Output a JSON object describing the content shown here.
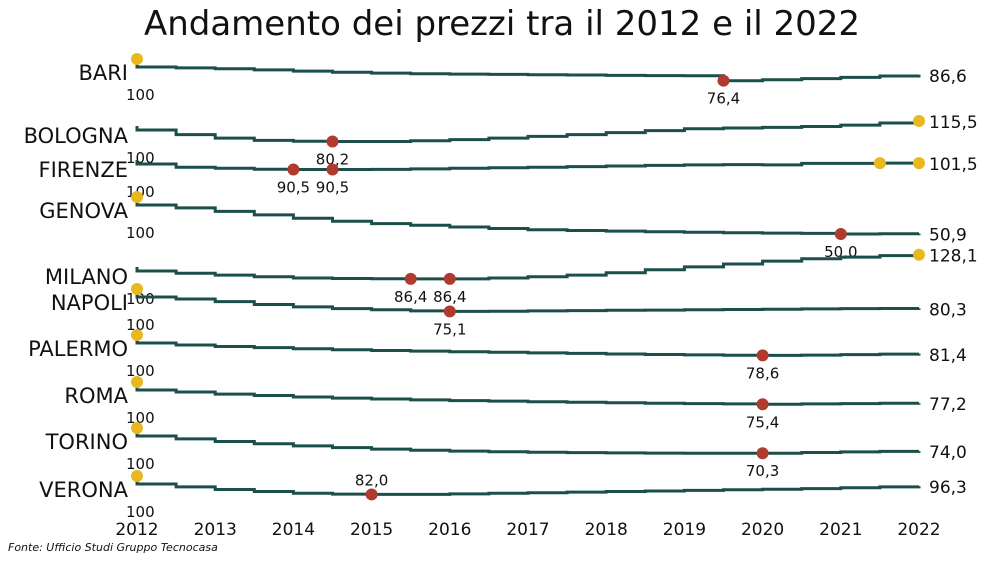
{
  "title": "Andamento dei prezzi tra il 2012 e il 2022",
  "source": "Fonte: Ufficio Studi Gruppo Tecnocasa",
  "colors": {
    "line": "#1b4f4a",
    "min_marker": "#b03a2e",
    "max_marker": "#e8b820",
    "text": "#111111"
  },
  "chart_data": {
    "type": "line",
    "title": "Andamento dei prezzi tra il 2012 e il 2022",
    "x_ticks": [
      "2012",
      "2013",
      "2014",
      "2015",
      "2016",
      "2017",
      "2018",
      "2019",
      "2020",
      "2021",
      "2022"
    ],
    "x_range": [
      2012,
      2022
    ],
    "index_base": 100,
    "series": [
      {
        "name": "BARI",
        "start_label": "100",
        "end_label": "86,6",
        "x": [
          2012,
          2012.5,
          2013,
          2013.5,
          2014,
          2014.5,
          2015,
          2015.5,
          2016,
          2016.5,
          2017,
          2017.5,
          2018,
          2018.5,
          2019,
          2019.5,
          2020,
          2020.5,
          2021,
          2021.5,
          2022
        ],
        "values": [
          100,
          98.5,
          97,
          95,
          93,
          91,
          89.5,
          88.5,
          87.8,
          87.3,
          86.8,
          86.2,
          85.6,
          85.2,
          84.8,
          76.4,
          78,
          80,
          82,
          84.5,
          86.6
        ],
        "min_points": [
          {
            "x": 2019.5,
            "label": "76,4"
          }
        ],
        "max_points": [
          {
            "x": 2012,
            "label": ""
          }
        ]
      },
      {
        "name": "BOLOGNA",
        "start_label": "100",
        "end_label": "115,5",
        "x": [
          2012,
          2012.5,
          2013,
          2013.5,
          2014,
          2014.5,
          2015,
          2015.5,
          2016,
          2016.5,
          2017,
          2017.5,
          2018,
          2018.5,
          2019,
          2019.5,
          2020,
          2020.5,
          2021,
          2021.5,
          2022
        ],
        "values": [
          100,
          92,
          86,
          82,
          80.5,
          80.2,
          80.2,
          81.5,
          83.5,
          86,
          89,
          92,
          95.5,
          99,
          102,
          103.5,
          104.5,
          106,
          108.5,
          112,
          115.5
        ],
        "min_points": [
          {
            "x": 2014.5,
            "label": "80,2"
          }
        ],
        "max_points": [
          {
            "x": 2022,
            "label": ""
          }
        ]
      },
      {
        "name": "FIRENZE",
        "start_label": "100",
        "end_label": "101,5",
        "x": [
          2012,
          2012.5,
          2013,
          2013.5,
          2014,
          2014.5,
          2015,
          2015.5,
          2016,
          2016.5,
          2017,
          2017.5,
          2018,
          2018.5,
          2019,
          2019.5,
          2020,
          2020.5,
          2021,
          2021.5,
          2022
        ],
        "values": [
          100,
          94.5,
          92.5,
          91,
          90.5,
          90.5,
          90.7,
          91.5,
          92.5,
          93.5,
          94.5,
          95.5,
          96.5,
          97.5,
          98.5,
          99,
          98.5,
          101,
          101,
          101.5,
          101.5
        ],
        "min_points": [
          {
            "x": 2014,
            "label": "90,5"
          },
          {
            "x": 2014.5,
            "label": "90,5"
          }
        ],
        "max_points": [
          {
            "x": 2021.5,
            "label": ""
          },
          {
            "x": 2022,
            "label": ""
          }
        ]
      },
      {
        "name": "GENOVA",
        "start_label": "100",
        "end_label": "50,9",
        "x": [
          2012,
          2012.5,
          2013,
          2013.5,
          2014,
          2014.5,
          2015,
          2015.5,
          2016,
          2016.5,
          2017,
          2017.5,
          2018,
          2018.5,
          2019,
          2019.5,
          2020,
          2020.5,
          2021,
          2021.5,
          2022
        ],
        "values": [
          100,
          95,
          89,
          83,
          77,
          72,
          68,
          65,
          62,
          59.5,
          57.5,
          56,
          55,
          54,
          53,
          52,
          51.5,
          51,
          50,
          50.5,
          50.9
        ],
        "min_points": [
          {
            "x": 2021,
            "label": "50,0"
          }
        ],
        "max_points": [
          {
            "x": 2012,
            "label": ""
          }
        ]
      },
      {
        "name": "MILANO",
        "start_label": "100",
        "end_label": "128,1",
        "x": [
          2012,
          2012.5,
          2013,
          2013.5,
          2014,
          2014.5,
          2015,
          2015.5,
          2016,
          2016.5,
          2017,
          2017.5,
          2018,
          2018.5,
          2019,
          2019.5,
          2020,
          2020.5,
          2021,
          2021.5,
          2022
        ],
        "values": [
          100,
          96,
          93,
          90,
          88,
          87,
          86.5,
          86.4,
          86.4,
          88,
          90,
          93,
          97,
          102,
          107,
          112,
          117,
          121,
          124,
          126.5,
          128.1
        ],
        "min_points": [
          {
            "x": 2015.5,
            "label": "86,4"
          },
          {
            "x": 2016,
            "label": "86,4"
          }
        ],
        "max_points": [
          {
            "x": 2022,
            "label": ""
          }
        ]
      },
      {
        "name": "NAPOLI",
        "start_label": "100",
        "end_label": "80,3",
        "x": [
          2012,
          2012.5,
          2013,
          2013.5,
          2014,
          2014.5,
          2015,
          2015.5,
          2016,
          2016.5,
          2017,
          2017.5,
          2018,
          2018.5,
          2019,
          2019.5,
          2020,
          2020.5,
          2021,
          2021.5,
          2022
        ],
        "values": [
          100,
          96.5,
          92,
          87,
          83,
          80,
          78,
          76,
          75.1,
          75.5,
          76,
          76.5,
          77,
          77.5,
          78,
          78.5,
          79,
          79.5,
          80,
          80.2,
          80.3
        ],
        "min_points": [
          {
            "x": 2016,
            "label": "75,1"
          }
        ],
        "max_points": [
          {
            "x": 2012,
            "label": ""
          }
        ]
      },
      {
        "name": "PALERMO",
        "start_label": "100",
        "end_label": "81,4",
        "x": [
          2012,
          2012.5,
          2013,
          2013.5,
          2014,
          2014.5,
          2015,
          2015.5,
          2016,
          2016.5,
          2017,
          2017.5,
          2018,
          2018.5,
          2019,
          2019.5,
          2020,
          2020.5,
          2021,
          2021.5,
          2022
        ],
        "values": [
          100,
          96.5,
          94,
          92,
          90,
          88.5,
          87,
          86,
          85,
          84,
          83,
          82,
          81,
          80.2,
          79.5,
          79,
          78.6,
          79.2,
          80,
          80.8,
          81.4
        ],
        "min_points": [
          {
            "x": 2020,
            "label": "78,6"
          }
        ],
        "max_points": [
          {
            "x": 2012,
            "label": ""
          }
        ]
      },
      {
        "name": "ROMA",
        "start_label": "100",
        "end_label": "77,2",
        "x": [
          2012,
          2012.5,
          2013,
          2013.5,
          2014,
          2014.5,
          2015,
          2015.5,
          2016,
          2016.5,
          2017,
          2017.5,
          2018,
          2018.5,
          2019,
          2019.5,
          2020,
          2020.5,
          2021,
          2021.5,
          2022
        ],
        "values": [
          100,
          96.5,
          93,
          90.5,
          88,
          86,
          84.5,
          83,
          81.8,
          80.8,
          79.8,
          78.8,
          78,
          77.2,
          76.5,
          76,
          75.4,
          76,
          76.5,
          77,
          77.2
        ],
        "min_points": [
          {
            "x": 2020,
            "label": "75,4"
          }
        ],
        "max_points": [
          {
            "x": 2012,
            "label": ""
          }
        ]
      },
      {
        "name": "TORINO",
        "start_label": "100",
        "end_label": "74,0",
        "x": [
          2012,
          2012.5,
          2013,
          2013.5,
          2014,
          2014.5,
          2015,
          2015.5,
          2016,
          2016.5,
          2017,
          2017.5,
          2018,
          2018.5,
          2019,
          2019.5,
          2020,
          2020.5,
          2021,
          2021.5,
          2022
        ],
        "values": [
          100,
          95,
          90.5,
          86.5,
          83,
          80,
          77.5,
          75.5,
          74,
          73,
          72,
          71.3,
          70.8,
          70.5,
          70.4,
          70.3,
          70.3,
          71.5,
          72.5,
          73.5,
          74
        ],
        "min_points": [
          {
            "x": 2020,
            "label": "70,3"
          }
        ],
        "max_points": [
          {
            "x": 2012,
            "label": ""
          }
        ]
      },
      {
        "name": "VERONA",
        "start_label": "100",
        "end_label": "96,3",
        "x": [
          2012,
          2012.5,
          2013,
          2013.5,
          2014,
          2014.5,
          2015,
          2015.5,
          2016,
          2016.5,
          2017,
          2017.5,
          2018,
          2018.5,
          2019,
          2019.5,
          2020,
          2020.5,
          2021,
          2021.5,
          2022
        ],
        "values": [
          100,
          95,
          90.5,
          87,
          84,
          82.5,
          82,
          82,
          83,
          84,
          85,
          86,
          87,
          88,
          89,
          90,
          91,
          92,
          93.5,
          95,
          96.3
        ],
        "min_points": [
          {
            "x": 2015,
            "label": "82,0"
          }
        ],
        "max_points": [
          {
            "x": 2012,
            "label": ""
          }
        ]
      }
    ]
  }
}
